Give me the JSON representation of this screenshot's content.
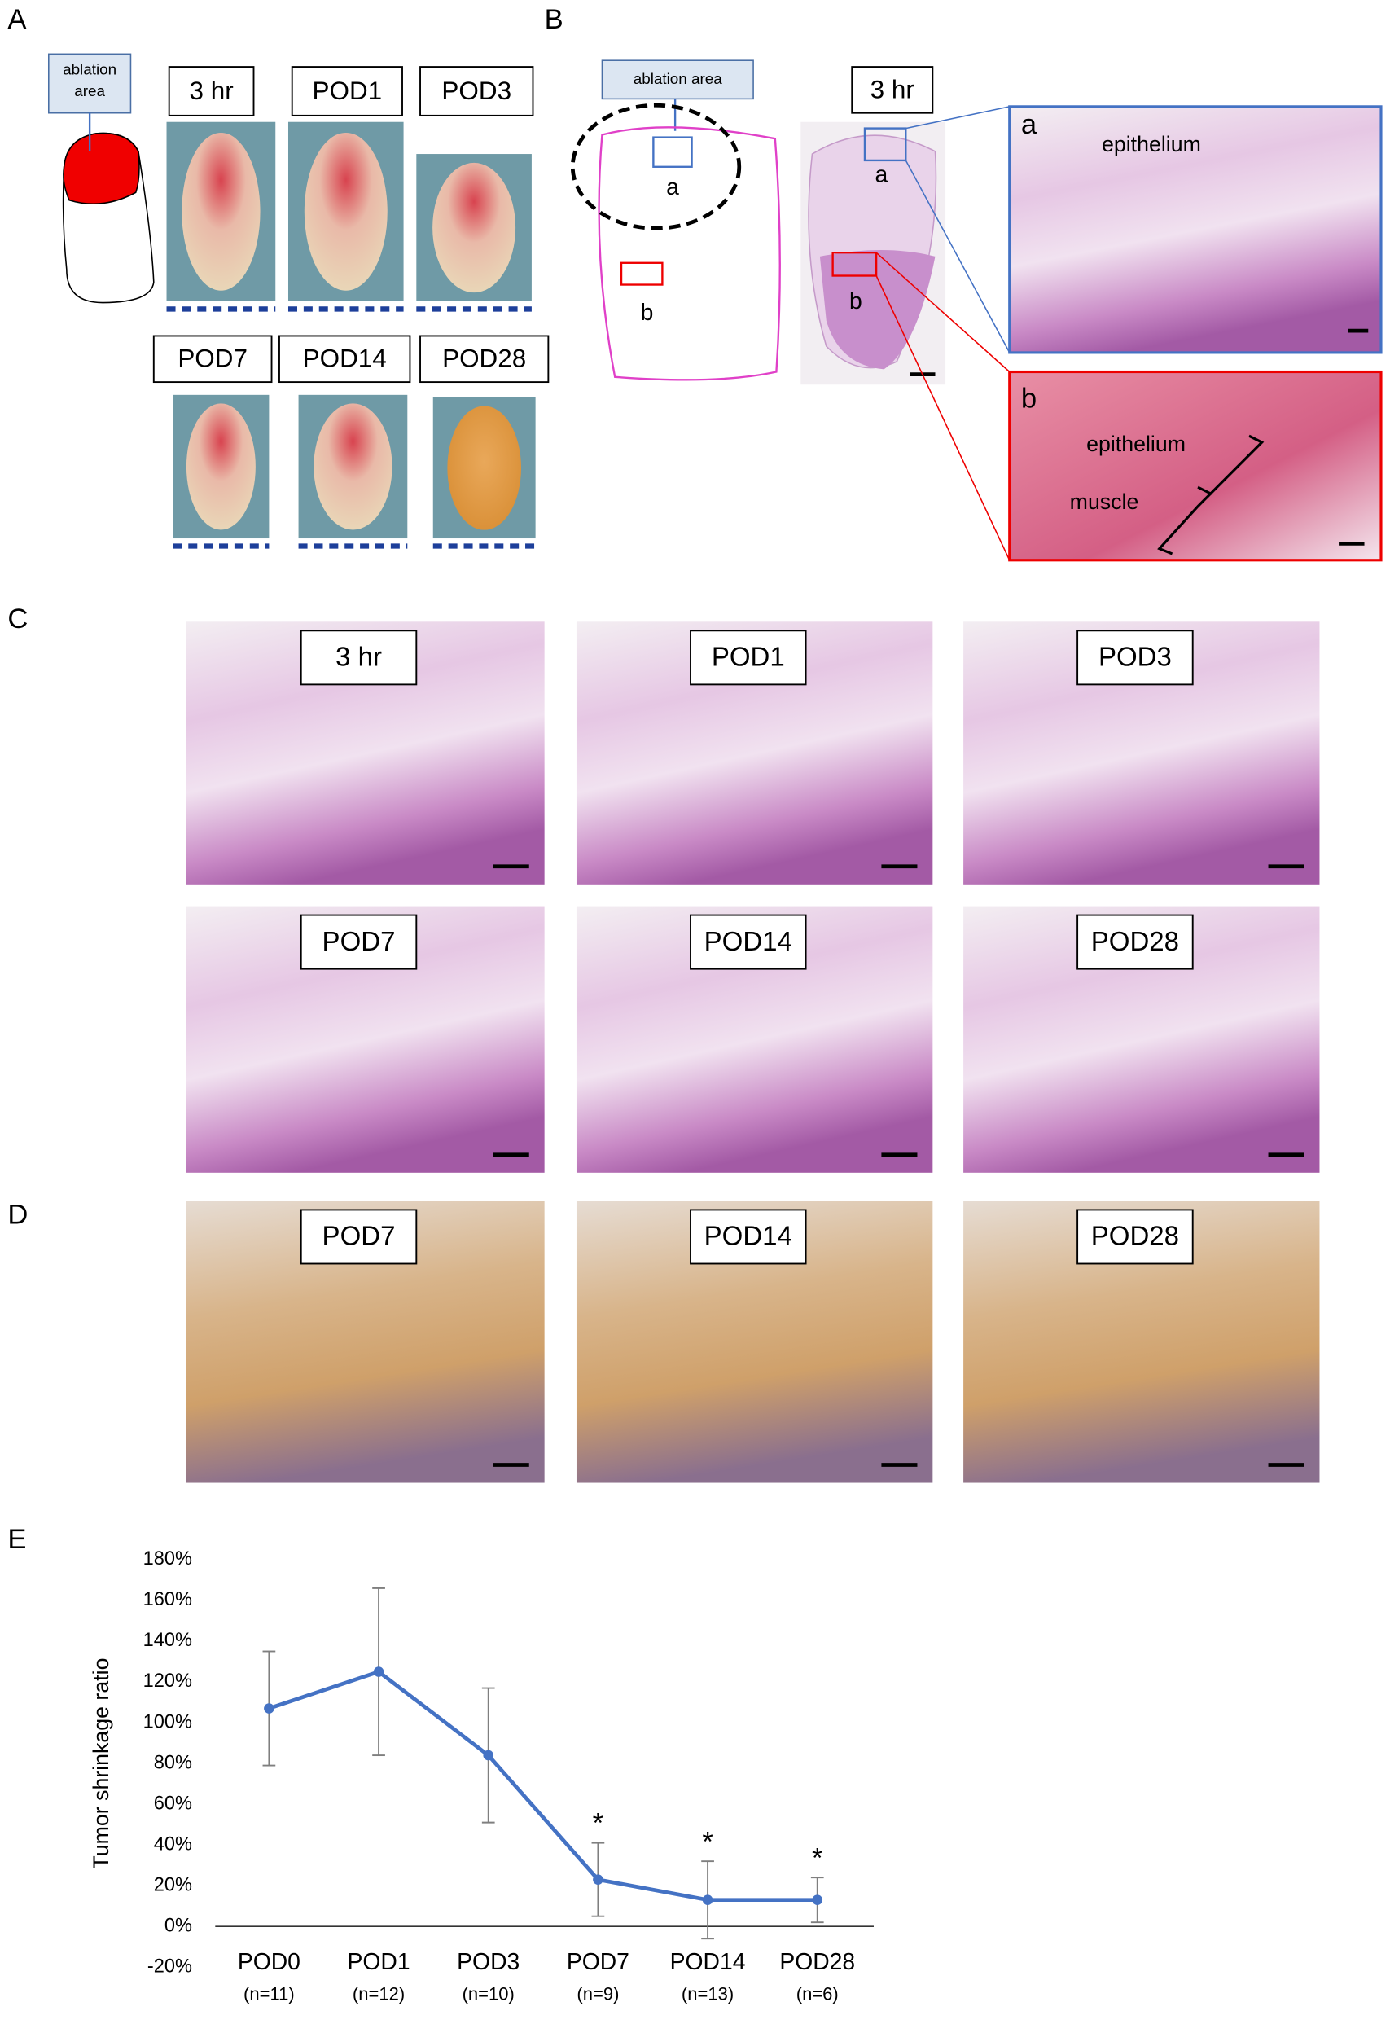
{
  "panels": {
    "A": {
      "label": "A",
      "ablation_label": [
        "ablation",
        "area"
      ],
      "timepoints": [
        "3 hr",
        "POD1",
        "POD3",
        "POD7",
        "POD14",
        "POD28"
      ]
    },
    "B": {
      "label": "B",
      "ablation_label": "ablation area",
      "region_a": "a",
      "region_b": "b",
      "timepoint": "3 hr",
      "inset_a": {
        "letter": "a",
        "epithelium": "epithelium"
      },
      "inset_b": {
        "letter": "b",
        "epithelium": "epithelium",
        "muscle": "muscle"
      }
    },
    "C": {
      "label": "C",
      "timepoints": [
        "3 hr",
        "POD1",
        "POD3",
        "POD7",
        "POD14",
        "POD28"
      ]
    },
    "D": {
      "label": "D",
      "timepoints": [
        "POD7",
        "POD14",
        "POD28"
      ]
    },
    "E": {
      "label": "E"
    }
  },
  "chart_data": {
    "type": "line",
    "y_label": "Tumor shrinkage ratio",
    "categories": [
      "POD0",
      "POD1",
      "POD3",
      "POD7",
      "POD14",
      "POD28"
    ],
    "sample_sizes": [
      "(n=11)",
      "(n=12)",
      "(n=10)",
      "(n=9)",
      "(n=13)",
      "(n=6)"
    ],
    "values": [
      107,
      125,
      84,
      23,
      13,
      13
    ],
    "errors": [
      28,
      41,
      33,
      18,
      19,
      11
    ],
    "significance": [
      null,
      null,
      null,
      "*",
      "*",
      "*"
    ],
    "color": "#4472c4",
    "ylim": [
      -20,
      180
    ],
    "yticks": [
      {
        "value": -20,
        "label": "-20%"
      },
      {
        "value": 0,
        "label": "0%"
      },
      {
        "value": 20,
        "label": "20%"
      },
      {
        "value": 40,
        "label": "40%"
      },
      {
        "value": 60,
        "label": "60%"
      },
      {
        "value": 80,
        "label": "80%"
      },
      {
        "value": 100,
        "label": "100%"
      },
      {
        "value": 120,
        "label": "120%"
      },
      {
        "value": 140,
        "label": "140%"
      },
      {
        "value": 160,
        "label": "160%"
      },
      {
        "value": 180,
        "label": "180%"
      }
    ]
  }
}
